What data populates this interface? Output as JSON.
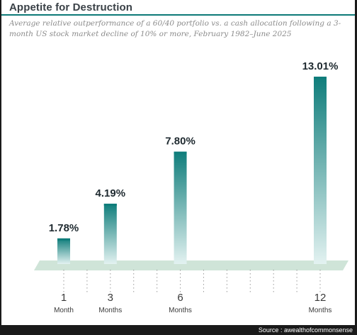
{
  "title": "Appetite for Destruction",
  "subtitle": "Average relative outperformance of a 60/40 portfolio vs. a cash allocation following a 3-month US stock market decline of 10% or more, February 1982–June 2025",
  "source": "Source : awealthofcommonsense",
  "colors": {
    "accent": "#0d7a78",
    "bar_top": "#0f7d7b",
    "bar_bottom": "#e3f2f1",
    "floor": "#cfe4d8",
    "label_text": "#1f2a30",
    "axis_text": "#3a3a3a"
  },
  "chart_data": {
    "type": "bar",
    "title": "Appetite for Destruction",
    "subtitle": "Average relative outperformance of a 60/40 portfolio vs. a cash allocation following a 3-month US stock market decline of 10% or more, February 1982–June 2025",
    "x_unit": "months",
    "categories": [
      {
        "number": "1",
        "unit": "Month",
        "months": 1
      },
      {
        "number": "3",
        "unit": "Months",
        "months": 3
      },
      {
        "number": "6",
        "unit": "Months",
        "months": 6
      },
      {
        "number": "12",
        "unit": "Months",
        "months": 12
      }
    ],
    "values": [
      1.78,
      4.19,
      7.8,
      13.01
    ],
    "value_labels": [
      "1.78%",
      "4.19%",
      "7.80%",
      "13.01%"
    ],
    "ylim": [
      0,
      13.01
    ],
    "x_range": [
      1,
      12
    ],
    "grid": false,
    "legend": "none",
    "xlabel": "",
    "ylabel": ""
  }
}
